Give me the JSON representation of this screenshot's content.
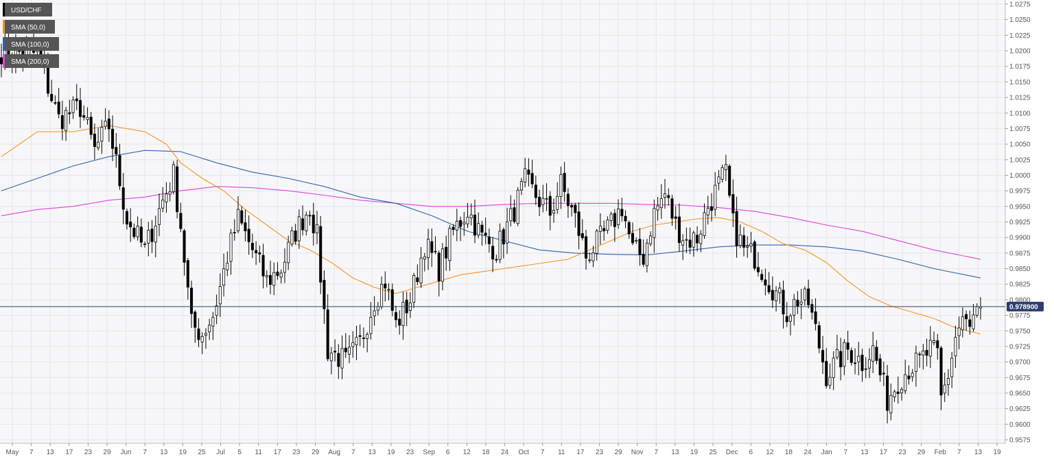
{
  "chart_data": {
    "type": "candlestick",
    "title": "",
    "xlabel": "",
    "ylabel": "",
    "grid": true,
    "legend_position": "top-left",
    "ylim": [
      0.9575,
      1.0275
    ],
    "y_ticks": [
      "1.0275",
      "1.0250",
      "1.0225",
      "1.0200",
      "1.0175",
      "1.0150",
      "1.0125",
      "1.0100",
      "1.0075",
      "1.0050",
      "1.0025",
      "1.0000",
      "0.9975",
      "0.9950",
      "0.9925",
      "0.9900",
      "0.9875",
      "0.9850",
      "0.9825",
      "0.9800",
      "0.9775",
      "0.9750",
      "0.9725",
      "0.9700",
      "0.9675",
      "0.9650",
      "0.9625",
      "0.9600",
      "0.9575"
    ],
    "x_ticks": [
      "May",
      "7",
      "13",
      "17",
      "23",
      "29",
      "Jun",
      "7",
      "13",
      "19",
      "25",
      "Jul",
      "5",
      "11",
      "17",
      "23",
      "29",
      "Aug",
      "7",
      "13",
      "19",
      "23",
      "Sep",
      "6",
      "12",
      "18",
      "24",
      "Oct",
      "7",
      "11",
      "17",
      "23",
      "29",
      "Nov",
      "7",
      "13",
      "19",
      "25",
      "Dec",
      "6",
      "12",
      "18",
      "24",
      "Jan",
      "7",
      "13",
      "17",
      "23",
      "29",
      "Feb",
      "7",
      "13",
      "19"
    ],
    "last_price": "0.978900",
    "legend": [
      {
        "label": "USD/CHF",
        "color": "#000000"
      },
      {
        "label": "SMA (50,0)",
        "color": "#f7931e"
      },
      {
        "label": "SMA (100,0)",
        "color": "#2e62b0"
      },
      {
        "label": "SMA (200,0)",
        "color": "#e040e0"
      }
    ],
    "colors": {
      "up": "#ffffff",
      "down": "#000000",
      "wick": "#000000",
      "last_line": "#2c3e70",
      "last_label_bg": "#2c3e70",
      "grid": "#e6e6e6",
      "plot_bg": "#f7f7f9"
    },
    "anchors": [
      {
        "i": 0,
        "p": 1.02
      },
      {
        "i": 10,
        "p": 1.0195
      },
      {
        "i": 16,
        "p": 1.009
      },
      {
        "i": 22,
        "p": 1.011
      },
      {
        "i": 26,
        "p": 1.004
      },
      {
        "i": 30,
        "p": 1.008
      },
      {
        "i": 35,
        "p": 0.993
      },
      {
        "i": 40,
        "p": 0.988
      },
      {
        "i": 45,
        "p": 0.996
      },
      {
        "i": 48,
        "p": 1.0
      },
      {
        "i": 50,
        "p": 0.992
      },
      {
        "i": 53,
        "p": 0.976
      },
      {
        "i": 56,
        "p": 0.9745
      },
      {
        "i": 59,
        "p": 0.9775
      },
      {
        "i": 61,
        "p": 0.982
      },
      {
        "i": 63,
        "p": 0.987
      },
      {
        "i": 66,
        "p": 0.993
      },
      {
        "i": 70,
        "p": 0.988
      },
      {
        "i": 74,
        "p": 0.983
      },
      {
        "i": 78,
        "p": 0.985
      },
      {
        "i": 82,
        "p": 0.991
      },
      {
        "i": 86,
        "p": 0.995
      },
      {
        "i": 88,
        "p": 0.99
      },
      {
        "i": 91,
        "p": 0.972
      },
      {
        "i": 96,
        "p": 0.97
      },
      {
        "i": 100,
        "p": 0.973
      },
      {
        "i": 104,
        "p": 0.98
      },
      {
        "i": 107,
        "p": 0.983
      },
      {
        "i": 110,
        "p": 0.976
      },
      {
        "i": 114,
        "p": 0.98
      },
      {
        "i": 118,
        "p": 0.989
      },
      {
        "i": 122,
        "p": 0.985
      },
      {
        "i": 126,
        "p": 0.991
      },
      {
        "i": 130,
        "p": 0.9945
      },
      {
        "i": 134,
        "p": 0.99
      },
      {
        "i": 138,
        "p": 0.988
      },
      {
        "i": 142,
        "p": 0.993
      },
      {
        "i": 146,
        "p": 0.999
      },
      {
        "i": 150,
        "p": 0.996
      },
      {
        "i": 153,
        "p": 0.994
      },
      {
        "i": 156,
        "p": 0.9985
      },
      {
        "i": 160,
        "p": 0.993
      },
      {
        "i": 163,
        "p": 0.987
      },
      {
        "i": 166,
        "p": 0.989
      },
      {
        "i": 170,
        "p": 0.992
      },
      {
        "i": 173,
        "p": 0.995
      },
      {
        "i": 176,
        "p": 0.988
      },
      {
        "i": 179,
        "p": 0.987
      },
      {
        "i": 182,
        "p": 0.994
      },
      {
        "i": 185,
        "p": 0.997
      },
      {
        "i": 188,
        "p": 0.992
      },
      {
        "i": 191,
        "p": 0.9895
      },
      {
        "i": 194,
        "p": 0.99
      },
      {
        "i": 197,
        "p": 0.995
      },
      {
        "i": 201,
        "p": 0.9995
      },
      {
        "i": 202,
        "p": 1.0
      },
      {
        "i": 204,
        "p": 0.992
      },
      {
        "i": 207,
        "p": 0.988
      },
      {
        "i": 210,
        "p": 0.987
      },
      {
        "i": 213,
        "p": 0.984
      },
      {
        "i": 216,
        "p": 0.981
      },
      {
        "i": 219,
        "p": 0.978
      },
      {
        "i": 222,
        "p": 0.98
      },
      {
        "i": 225,
        "p": 0.9795
      },
      {
        "i": 227,
        "p": 0.975
      },
      {
        "i": 230,
        "p": 0.968
      },
      {
        "i": 233,
        "p": 0.97
      },
      {
        "i": 236,
        "p": 0.972
      },
      {
        "i": 240,
        "p": 0.97
      },
      {
        "i": 243,
        "p": 0.972
      },
      {
        "i": 245,
        "p": 0.968
      },
      {
        "i": 247,
        "p": 0.964
      },
      {
        "i": 250,
        "p": 0.967
      },
      {
        "i": 253,
        "p": 0.969
      },
      {
        "i": 256,
        "p": 0.97
      },
      {
        "i": 259,
        "p": 0.972
      },
      {
        "i": 261,
        "p": 0.971
      },
      {
        "i": 262,
        "p": 0.964
      },
      {
        "i": 264,
        "p": 0.968
      },
      {
        "i": 266,
        "p": 0.974
      },
      {
        "i": 268,
        "p": 0.977
      },
      {
        "i": 270,
        "p": 0.975
      },
      {
        "i": 271,
        "p": 0.977
      },
      {
        "i": 273,
        "p": 0.9789
      }
    ],
    "sma50": [
      [
        0,
        1.003
      ],
      [
        10,
        1.007
      ],
      [
        20,
        1.007
      ],
      [
        30,
        1.008
      ],
      [
        40,
        1.007
      ],
      [
        46,
        1.005
      ],
      [
        50,
        1.002
      ],
      [
        56,
        0.9995
      ],
      [
        62,
        0.9975
      ],
      [
        68,
        0.9945
      ],
      [
        74,
        0.992
      ],
      [
        80,
        0.9895
      ],
      [
        86,
        0.988
      ],
      [
        92,
        0.986
      ],
      [
        98,
        0.9835
      ],
      [
        104,
        0.982
      ],
      [
        110,
        0.981
      ],
      [
        116,
        0.982
      ],
      [
        122,
        0.983
      ],
      [
        128,
        0.984
      ],
      [
        134,
        0.9845
      ],
      [
        140,
        0.985
      ],
      [
        146,
        0.9855
      ],
      [
        152,
        0.986
      ],
      [
        158,
        0.9865
      ],
      [
        164,
        0.988
      ],
      [
        170,
        0.9895
      ],
      [
        176,
        0.991
      ],
      [
        182,
        0.992
      ],
      [
        188,
        0.9925
      ],
      [
        194,
        0.993
      ],
      [
        200,
        0.9932
      ],
      [
        206,
        0.9925
      ],
      [
        212,
        0.991
      ],
      [
        218,
        0.989
      ],
      [
        224,
        0.988
      ],
      [
        230,
        0.986
      ],
      [
        236,
        0.983
      ],
      [
        242,
        0.9805
      ],
      [
        248,
        0.979
      ],
      [
        254,
        0.978
      ],
      [
        260,
        0.977
      ],
      [
        266,
        0.9755
      ],
      [
        273,
        0.9745
      ]
    ],
    "sma100": [
      [
        0,
        0.9975
      ],
      [
        10,
        0.9995
      ],
      [
        20,
        1.0015
      ],
      [
        30,
        1.003
      ],
      [
        40,
        1.004
      ],
      [
        50,
        1.0038
      ],
      [
        60,
        1.002
      ],
      [
        70,
        1.0005
      ],
      [
        80,
        0.9995
      ],
      [
        90,
        0.9982
      ],
      [
        100,
        0.9965
      ],
      [
        110,
        0.9955
      ],
      [
        120,
        0.9935
      ],
      [
        130,
        0.991
      ],
      [
        140,
        0.9895
      ],
      [
        150,
        0.988
      ],
      [
        160,
        0.9875
      ],
      [
        170,
        0.9873
      ],
      [
        180,
        0.9872
      ],
      [
        190,
        0.9878
      ],
      [
        200,
        0.9885
      ],
      [
        210,
        0.9888
      ],
      [
        220,
        0.9888
      ],
      [
        230,
        0.9885
      ],
      [
        240,
        0.9878
      ],
      [
        250,
        0.9865
      ],
      [
        260,
        0.985
      ],
      [
        273,
        0.9835
      ]
    ],
    "sma200": [
      [
        0,
        0.9935
      ],
      [
        10,
        0.9945
      ],
      [
        20,
        0.995
      ],
      [
        30,
        0.996
      ],
      [
        40,
        0.9965
      ],
      [
        50,
        0.9975
      ],
      [
        60,
        0.9982
      ],
      [
        70,
        0.998
      ],
      [
        80,
        0.9975
      ],
      [
        90,
        0.9968
      ],
      [
        100,
        0.996
      ],
      [
        110,
        0.9955
      ],
      [
        120,
        0.995
      ],
      [
        130,
        0.995
      ],
      [
        140,
        0.9953
      ],
      [
        150,
        0.9955
      ],
      [
        160,
        0.9955
      ],
      [
        170,
        0.9955
      ],
      [
        180,
        0.9953
      ],
      [
        190,
        0.9952
      ],
      [
        200,
        0.9948
      ],
      [
        210,
        0.9942
      ],
      [
        220,
        0.9932
      ],
      [
        230,
        0.992
      ],
      [
        240,
        0.991
      ],
      [
        250,
        0.9895
      ],
      [
        260,
        0.988
      ],
      [
        273,
        0.9865
      ]
    ]
  }
}
